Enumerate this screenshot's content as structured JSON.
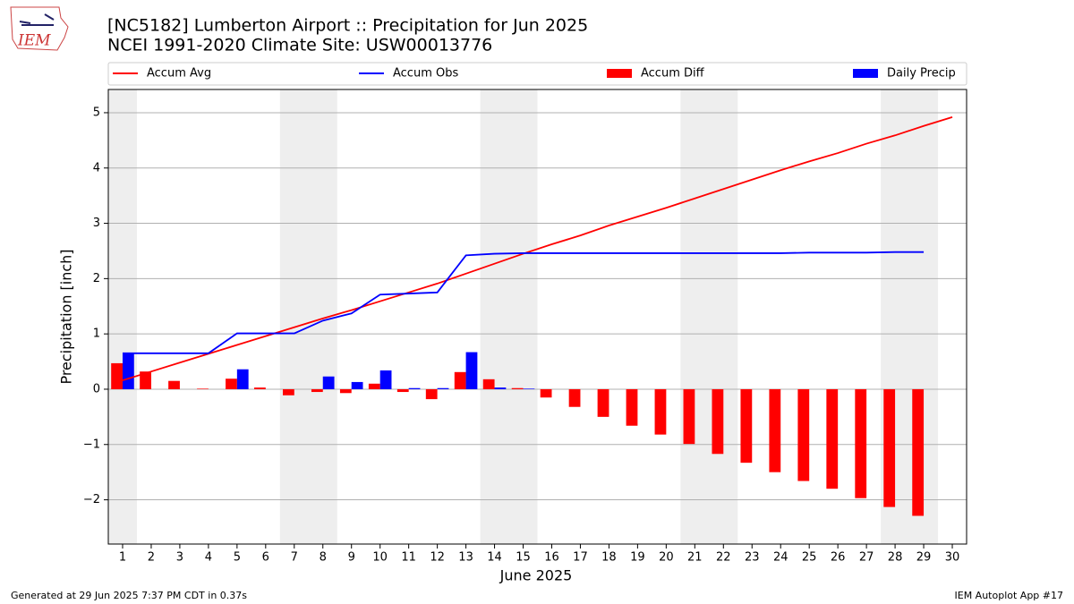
{
  "logo": "IEM",
  "footer_left": "Generated at 29 Jun 2025 7:37 PM CDT in 0.37s",
  "footer_right": "IEM Autoplot App #17",
  "chart_data": {
    "type": "combo",
    "title": "[NC5182] Lumberton Airport :: Precipitation for Jun 2025",
    "subtitle": "NCEI 1991-2020 Climate Site: USW00013776",
    "x_label": "June 2025",
    "y_label": "Precipitation [inch]",
    "x": [
      1,
      2,
      3,
      4,
      5,
      6,
      7,
      8,
      9,
      10,
      11,
      12,
      13,
      14,
      15,
      16,
      17,
      18,
      19,
      20,
      21,
      22,
      23,
      24,
      25,
      26,
      27,
      28,
      29,
      30
    ],
    "xlim": [
      0.5,
      30.5
    ],
    "xticks": [
      1,
      2,
      3,
      4,
      5,
      6,
      7,
      8,
      9,
      10,
      11,
      12,
      13,
      14,
      15,
      16,
      17,
      18,
      19,
      20,
      21,
      22,
      23,
      24,
      25,
      26,
      27,
      28,
      29,
      30
    ],
    "ylim": [
      -2.8,
      5.42
    ],
    "yticks": [
      {
        "value": -2,
        "label": "−2"
      },
      {
        "value": -1,
        "label": "−1"
      },
      0,
      1,
      2,
      3,
      4,
      5
    ],
    "grid": true,
    "shaded_spans": [
      [
        0.5,
        1.5
      ],
      [
        6.5,
        8.5
      ],
      [
        13.5,
        15.5
      ],
      [
        20.5,
        22.5
      ],
      [
        27.5,
        29.5
      ]
    ],
    "shade_color": "#eeeeee",
    "series": [
      {
        "name": "Accum Avg",
        "type": "line",
        "color": "#ff0000",
        "values": [
          0.16,
          0.32,
          0.48,
          0.64,
          0.8,
          0.96,
          1.12,
          1.28,
          1.43,
          1.59,
          1.75,
          1.91,
          2.09,
          2.27,
          2.45,
          2.62,
          2.78,
          2.96,
          3.12,
          3.28,
          3.45,
          3.62,
          3.79,
          3.96,
          4.12,
          4.27,
          4.44,
          4.59,
          4.76,
          4.92
        ]
      },
      {
        "name": "Accum Obs",
        "type": "line",
        "color": "#0000ff",
        "values": [
          0.65,
          0.65,
          0.65,
          0.65,
          1.01,
          1.01,
          1.01,
          1.24,
          1.37,
          1.71,
          1.73,
          1.75,
          2.42,
          2.45,
          2.46,
          2.46,
          2.46,
          2.46,
          2.46,
          2.46,
          2.46,
          2.46,
          2.46,
          2.46,
          2.47,
          2.47,
          2.47,
          2.48,
          2.48,
          null
        ]
      },
      {
        "name": "Accum Diff",
        "type": "bar",
        "color": "#ff0000",
        "values": [
          0.47,
          0.32,
          0.15,
          0.01,
          0.19,
          0.03,
          -0.11,
          -0.05,
          -0.07,
          0.1,
          -0.05,
          -0.18,
          0.31,
          0.18,
          0.02,
          -0.15,
          -0.32,
          -0.5,
          -0.66,
          -0.82,
          -0.99,
          -1.17,
          -1.33,
          -1.5,
          -1.66,
          -1.8,
          -1.97,
          -2.13,
          -2.29,
          null
        ]
      },
      {
        "name": "Daily Precip",
        "type": "bar",
        "color": "#0000ff",
        "values": [
          0.65,
          0,
          0,
          0,
          0.36,
          0,
          0,
          0.23,
          0.13,
          0.34,
          0.02,
          0.02,
          0.67,
          0.03,
          0.01,
          0,
          0,
          0,
          0,
          0,
          0,
          0,
          0,
          0,
          0,
          0,
          0,
          0,
          0,
          null
        ]
      }
    ]
  }
}
